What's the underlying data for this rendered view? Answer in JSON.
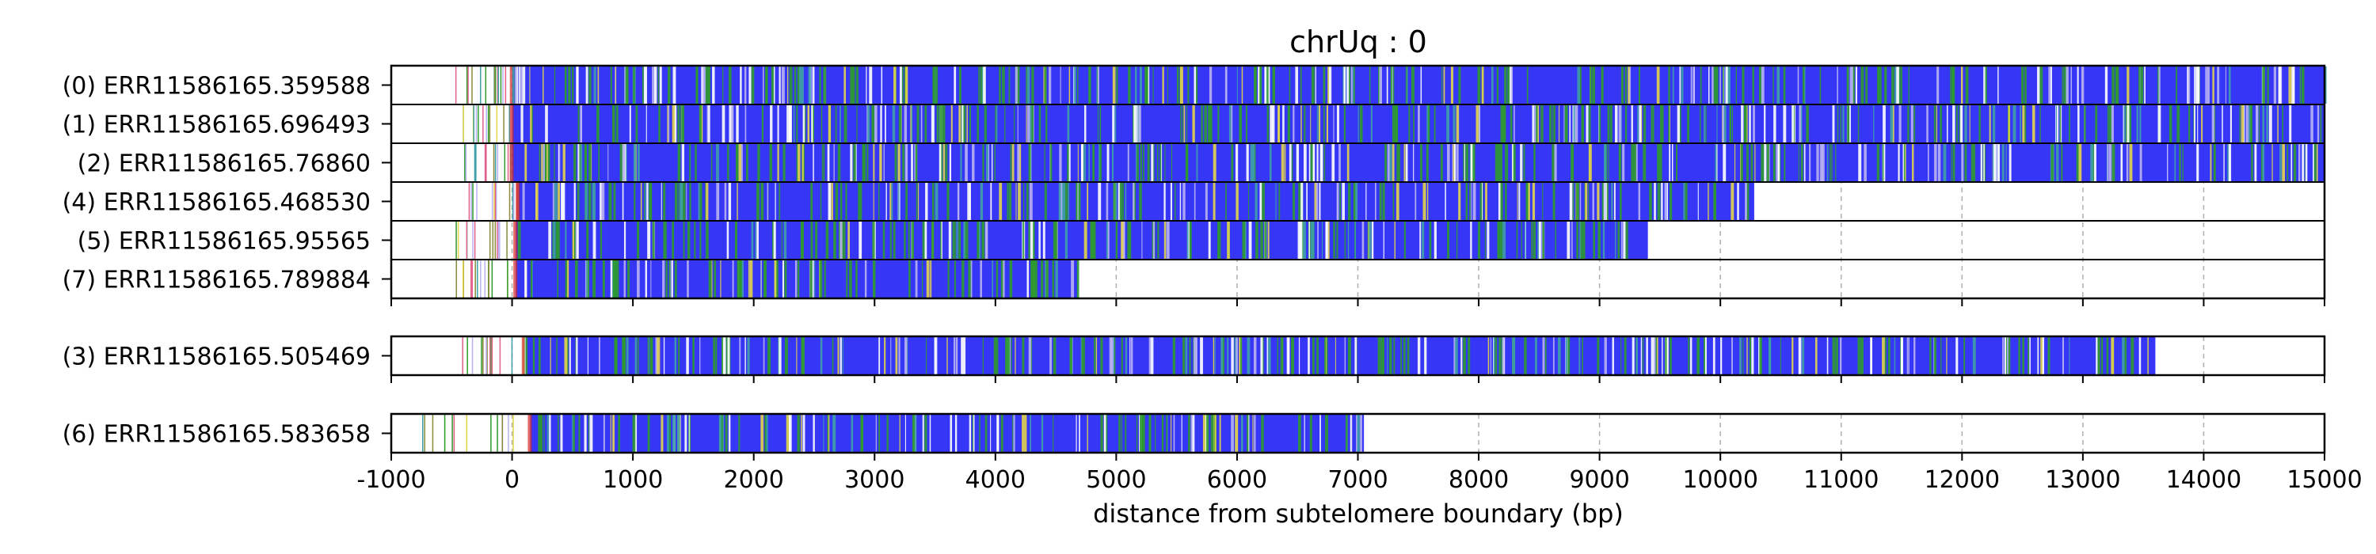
{
  "chart_data": {
    "type": "bar",
    "title": "chrUq : 0",
    "xlabel": "distance from subtelomere boundary (bp)",
    "ylabel": "",
    "xlim": [
      -1000,
      15000
    ],
    "x_ticks": [
      -1000,
      0,
      1000,
      2000,
      3000,
      4000,
      5000,
      6000,
      7000,
      8000,
      9000,
      10000,
      11000,
      12000,
      13000,
      14000,
      15000
    ],
    "grid": true,
    "colors": {
      "repeat": "#3636f6",
      "variant_green": "#2e9a2e",
      "variant_yellow": "#e3d54a",
      "variant_teal": "#3fa0a8",
      "variant_pink": "#e0608a",
      "variant_red": "#d62a2a",
      "variant_white": "#ffffff",
      "variant_olive": "#8a8a3a",
      "variant_lilac": "#b9b2f2",
      "axis": "#000000",
      "grid": "#b0b0b0"
    },
    "panels": [
      {
        "reads": [
          {
            "label": "(0) ERR11586165.359588",
            "start": -500,
            "repeat_start": 1,
            "end": 15000
          },
          {
            "label": "(1) ERR11586165.696493",
            "start": -450,
            "repeat_start": 0,
            "end": 15000
          },
          {
            "label": "(2) ERR11586165.76860",
            "start": -430,
            "repeat_start": 0,
            "end": 15000
          },
          {
            "label": "(4) ERR11586165.468530",
            "start": -450,
            "repeat_start": 50,
            "end": 10280
          },
          {
            "label": "(5) ERR11586165.95565",
            "start": -500,
            "repeat_start": 30,
            "end": 9400
          },
          {
            "label": "(7) ERR11586165.789884",
            "start": -480,
            "repeat_start": 30,
            "end": 4680
          }
        ]
      },
      {
        "reads": [
          {
            "label": "(3) ERR11586165.505469",
            "start": -450,
            "repeat_start": 100,
            "end": 13600
          }
        ]
      },
      {
        "reads": [
          {
            "label": "(6) ERR11586165.583658",
            "start": -850,
            "repeat_start": 150,
            "end": 7050
          }
        ]
      }
    ]
  }
}
